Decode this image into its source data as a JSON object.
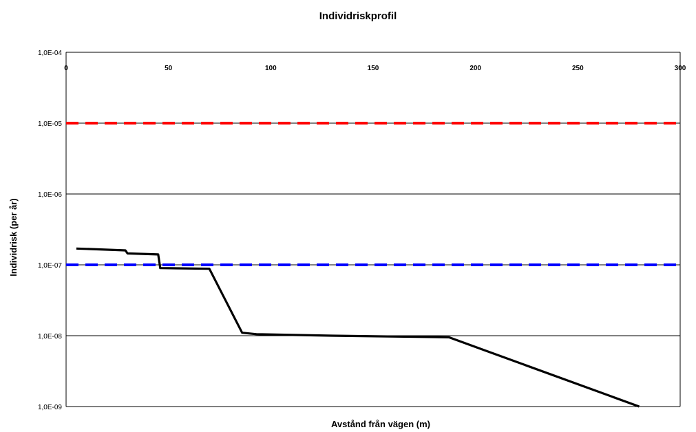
{
  "chart_data": {
    "type": "line",
    "title": "Individriskprofil",
    "xlabel": "Avstånd från vägen (m)",
    "ylabel": "Individrisk (per år)",
    "xlim": [
      0,
      300
    ],
    "ylim": [
      1e-09,
      0.0001
    ],
    "yscale": "log",
    "grid": "horizontal",
    "x_ticks": [
      "0",
      "50",
      "100",
      "150",
      "200",
      "250",
      "300"
    ],
    "y_ticks": [
      "1,0E-04",
      "1,0E-05",
      "1,0E-06",
      "1,0E-07",
      "1,0E-08",
      "1,0E-09"
    ],
    "colors": {
      "series": "#000000",
      "upper_limit": "#ff0000",
      "lower_limit": "#0000ff"
    },
    "series": [
      {
        "x": [
          5,
          17,
          29,
          30,
          45,
          46,
          70,
          86,
          93,
          130,
          187,
          280
        ],
        "y": [
          1.7e-07,
          1.65e-07,
          1.6e-07,
          1.45e-07,
          1.4e-07,
          9e-08,
          8.8e-08,
          1.1e-08,
          1.05e-08,
          1e-08,
          9.5e-09,
          1e-09
        ]
      },
      {
        "x": [
          0,
          300
        ],
        "y": [
          1e-05,
          1e-05
        ],
        "style": "dashed"
      },
      {
        "x": [
          0,
          300
        ],
        "y": [
          1e-07,
          1e-07
        ],
        "style": "dashed"
      }
    ]
  }
}
